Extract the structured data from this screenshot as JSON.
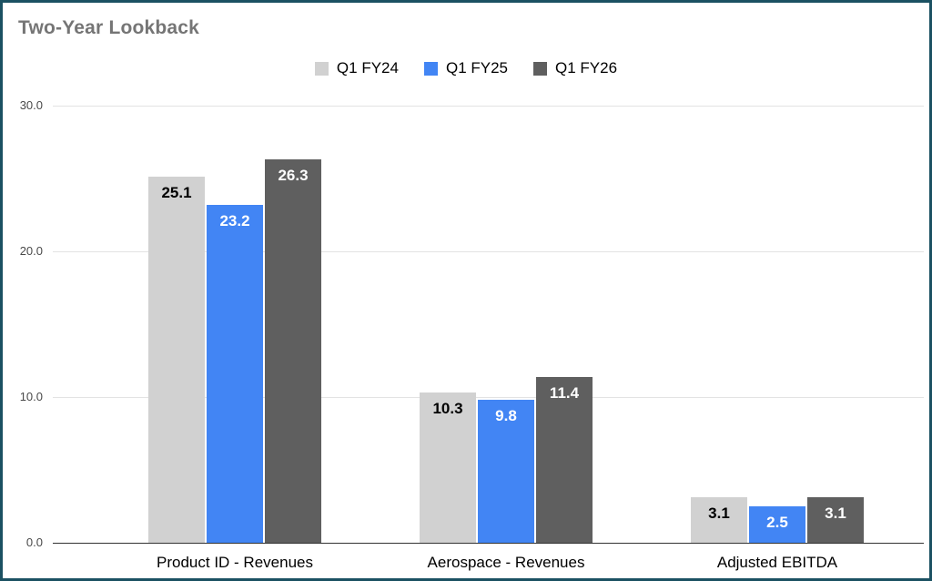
{
  "title": "Two-Year Lookback",
  "colors": {
    "border": "#1b5162",
    "title": "#757575",
    "grid": "#e3e3e3",
    "axis_line": "#333333",
    "fy24_bar": "#d1d1d1",
    "fy25_bar": "#4285f4",
    "fy26_bar": "#5f5f5f"
  },
  "chart_data": {
    "type": "bar",
    "title": "Two-Year Lookback",
    "categories": [
      "Product ID - Revenues",
      "Aerospace - Revenues",
      "Adjusted EBITDA"
    ],
    "series": [
      {
        "name": "Q1 FY24",
        "color": "#d1d1d1",
        "label_color": "#000000",
        "values": [
          25.1,
          10.3,
          3.1
        ]
      },
      {
        "name": "Q1 FY25",
        "color": "#4285f4",
        "label_color": "#ffffff",
        "values": [
          23.2,
          9.8,
          2.5
        ]
      },
      {
        "name": "Q1 FY26",
        "color": "#5f5f5f",
        "label_color": "#ffffff",
        "values": [
          26.3,
          11.4,
          3.1
        ]
      }
    ],
    "y_ticks": [
      0,
      10,
      20,
      30
    ],
    "y_tick_labels": [
      "0.0",
      "10.0",
      "20.0",
      "30.0"
    ],
    "ylim": [
      0,
      30
    ],
    "grid": true,
    "legend_position": "top",
    "data_labels": true
  }
}
